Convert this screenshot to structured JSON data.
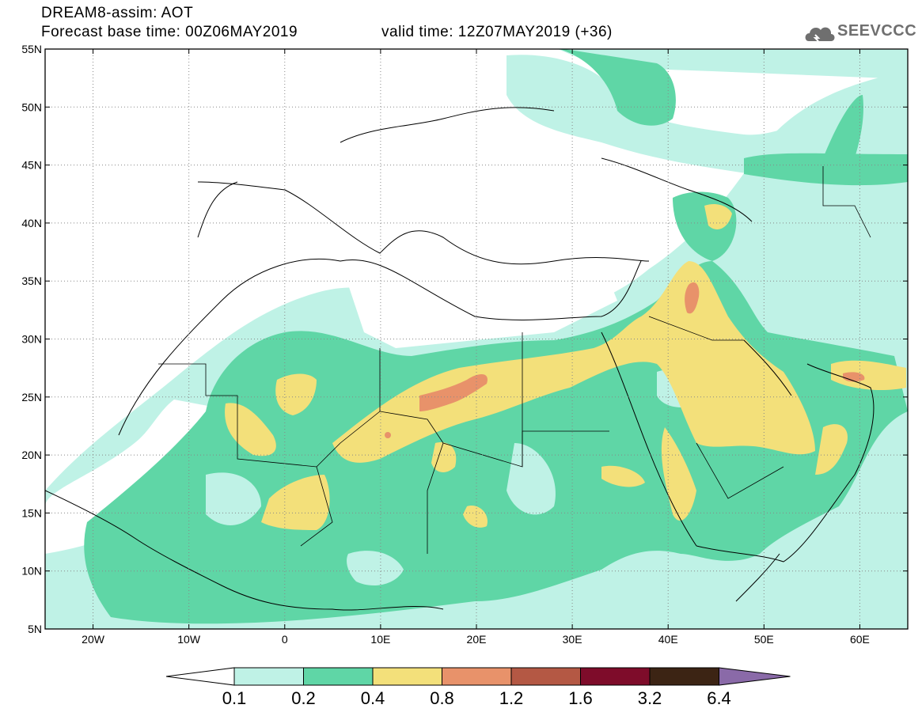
{
  "header": {
    "title_line1": "DREAM8-assim: AOT",
    "base_time": "Forecast base time: 00Z06MAY2019",
    "valid_time": "valid time: 12Z07MAY2019 (+36)"
  },
  "logo": {
    "icon": "cloud-logo-icon",
    "text": "SEEVCCC"
  },
  "map": {
    "lat_labels": [
      "55N",
      "50N",
      "45N",
      "40N",
      "35N",
      "30N",
      "25N",
      "20N",
      "15N",
      "10N",
      "5N"
    ],
    "lon_labels": [
      "20W",
      "10W",
      "0",
      "10E",
      "20E",
      "30E",
      "40E",
      "50E",
      "60E"
    ],
    "lon_range": [
      -25,
      65
    ],
    "lat_range": [
      5,
      55
    ],
    "grid": "dotted"
  },
  "colorbar": {
    "labels": [
      "0.1",
      "0.2",
      "0.4",
      "0.8",
      "1.2",
      "1.6",
      "3.2",
      "6.4"
    ],
    "colors": [
      "#ffffff",
      "#bff2e6",
      "#5fd6a6",
      "#f3e07a",
      "#e8926a",
      "#b45844",
      "#7e0c2a",
      "#3c2414",
      "#8a6aa8"
    ]
  }
}
